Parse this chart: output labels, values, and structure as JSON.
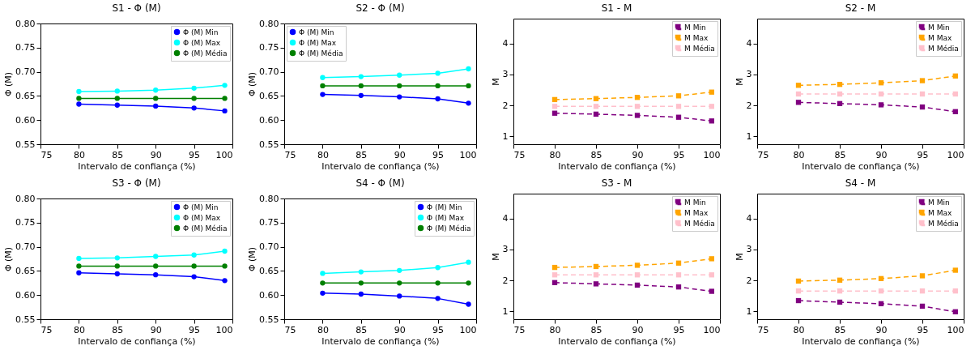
{
  "chart_data": [
    {
      "type": "line",
      "title": "S1 - Φ (M)",
      "xlabel": "Intervalo de confiança (%)",
      "ylabel": "Φ (M)",
      "x": [
        80,
        85,
        90,
        95,
        99
      ],
      "xlim": [
        75,
        100
      ],
      "xticks": [
        75,
        80,
        85,
        90,
        95,
        100
      ],
      "ylim": [
        0.55,
        0.8
      ],
      "yticks": [
        {
          "value": 0.55,
          "label": "0.55"
        },
        {
          "value": 0.6,
          "label": "0.60"
        },
        {
          "value": 0.65,
          "label": "0.65"
        },
        {
          "value": 0.7,
          "label": "0.70"
        },
        {
          "value": 0.75,
          "label": "0.75"
        },
        {
          "value": 0.8,
          "label": "0.80"
        }
      ],
      "marker": "circle",
      "line_style": "solid",
      "legend": "top right",
      "series": [
        {
          "name": "Φ (M) Min",
          "color": "#0000ff",
          "values": [
            0.633,
            0.631,
            0.629,
            0.625,
            0.619
          ]
        },
        {
          "name": "Φ (M) Max",
          "color": "#00ffff",
          "values": [
            0.659,
            0.66,
            0.662,
            0.666,
            0.672
          ]
        },
        {
          "name": "Φ (M) Média",
          "color": "#008000",
          "values": [
            0.645,
            0.645,
            0.645,
            0.645,
            0.645
          ]
        }
      ]
    },
    {
      "type": "line",
      "title": "S2 - Φ (M)",
      "xlabel": "Intervalo de confiança (%)",
      "ylabel": "Φ (M)",
      "x": [
        80,
        85,
        90,
        95,
        99
      ],
      "xlim": [
        75,
        100
      ],
      "xticks": [
        75,
        80,
        85,
        90,
        95,
        100
      ],
      "ylim": [
        0.55,
        0.8
      ],
      "yticks": [
        {
          "value": 0.55,
          "label": "0.55"
        },
        {
          "value": 0.6,
          "label": "0.60"
        },
        {
          "value": 0.65,
          "label": "0.65"
        },
        {
          "value": 0.7,
          "label": "0.70"
        },
        {
          "value": 0.75,
          "label": "0.75"
        },
        {
          "value": 0.8,
          "label": "0.80"
        }
      ],
      "marker": "circle",
      "line_style": "solid",
      "legend": "top left",
      "series": [
        {
          "name": "Φ (M) Min",
          "color": "#0000ff",
          "values": [
            0.653,
            0.651,
            0.648,
            0.644,
            0.635
          ]
        },
        {
          "name": "Φ (M) Max",
          "color": "#00ffff",
          "values": [
            0.688,
            0.69,
            0.693,
            0.697,
            0.706
          ]
        },
        {
          "name": "Φ (M) Média",
          "color": "#008000",
          "values": [
            0.671,
            0.671,
            0.671,
            0.671,
            0.671
          ]
        }
      ]
    },
    {
      "type": "line",
      "title": "S1 - M",
      "xlabel": "Intervalo de confiança (%)",
      "ylabel": "M",
      "x": [
        80,
        85,
        90,
        95,
        99
      ],
      "xlim": [
        75,
        100
      ],
      "xticks": [
        75,
        80,
        85,
        90,
        95,
        100
      ],
      "ylim": [
        0.75,
        4.8
      ],
      "yticks": [
        1,
        2,
        3,
        4
      ],
      "marker": "square",
      "line_style": "dashed",
      "legend": "top right",
      "series": [
        {
          "name": "M Min",
          "color": "#800080",
          "values": [
            1.75,
            1.72,
            1.68,
            1.62,
            1.5
          ]
        },
        {
          "name": "M Max",
          "color": "#ffa500",
          "values": [
            2.19,
            2.22,
            2.26,
            2.31,
            2.43
          ]
        },
        {
          "name": "M Média",
          "color": "#ffc0cb",
          "values": [
            1.97,
            1.97,
            1.97,
            1.97,
            1.97
          ]
        }
      ]
    },
    {
      "type": "line",
      "title": "S2 - M",
      "xlabel": "Intervalo de confiança (%)",
      "ylabel": "M",
      "x": [
        80,
        85,
        90,
        95,
        99
      ],
      "xlim": [
        75,
        100
      ],
      "xticks": [
        75,
        80,
        85,
        90,
        95,
        100
      ],
      "ylim": [
        0.75,
        4.8
      ],
      "yticks": [
        1,
        2,
        3,
        4
      ],
      "marker": "square",
      "line_style": "dashed",
      "legend": "top right",
      "series": [
        {
          "name": "M Min",
          "color": "#800080",
          "values": [
            2.1,
            2.06,
            2.02,
            1.95,
            1.8
          ]
        },
        {
          "name": "M Max",
          "color": "#ffa500",
          "values": [
            2.65,
            2.68,
            2.73,
            2.8,
            2.95
          ]
        },
        {
          "name": "M Média",
          "color": "#ffc0cb",
          "values": [
            2.37,
            2.37,
            2.37,
            2.37,
            2.37
          ]
        }
      ]
    },
    {
      "type": "line",
      "title": "S3 - Φ (M)",
      "xlabel": "Intervalo de confiança (%)",
      "ylabel": "Φ (M)",
      "x": [
        80,
        85,
        90,
        95,
        99
      ],
      "xlim": [
        75,
        100
      ],
      "xticks": [
        75,
        80,
        85,
        90,
        95,
        100
      ],
      "ylim": [
        0.55,
        0.8
      ],
      "yticks": [
        {
          "value": 0.55,
          "label": "0.55"
        },
        {
          "value": 0.6,
          "label": "0.60"
        },
        {
          "value": 0.65,
          "label": "0.65"
        },
        {
          "value": 0.7,
          "label": "0.70"
        },
        {
          "value": 0.75,
          "label": "0.75"
        },
        {
          "value": 0.8,
          "label": "0.80"
        }
      ],
      "marker": "circle",
      "line_style": "solid",
      "legend": "top right",
      "series": [
        {
          "name": "Φ (M) Min",
          "color": "#0000ff",
          "values": [
            0.646,
            0.644,
            0.642,
            0.638,
            0.63
          ]
        },
        {
          "name": "Φ (M) Max",
          "color": "#00ffff",
          "values": [
            0.676,
            0.677,
            0.68,
            0.683,
            0.691
          ]
        },
        {
          "name": "Φ (M) Média",
          "color": "#008000",
          "values": [
            0.66,
            0.66,
            0.66,
            0.66,
            0.66
          ]
        }
      ]
    },
    {
      "type": "line",
      "title": "S4 - Φ (M)",
      "xlabel": "Intervalo de confiança (%)",
      "ylabel": "Φ (M)",
      "x": [
        80,
        85,
        90,
        95,
        99
      ],
      "xlim": [
        75,
        100
      ],
      "xticks": [
        75,
        80,
        85,
        90,
        95,
        100
      ],
      "ylim": [
        0.55,
        0.8
      ],
      "yticks": [
        {
          "value": 0.55,
          "label": "0.55"
        },
        {
          "value": 0.6,
          "label": "0.60"
        },
        {
          "value": 0.65,
          "label": "0.65"
        },
        {
          "value": 0.7,
          "label": "0.70"
        },
        {
          "value": 0.75,
          "label": "0.75"
        },
        {
          "value": 0.8,
          "label": "0.80"
        }
      ],
      "marker": "circle",
      "line_style": "solid",
      "legend": "top right",
      "series": [
        {
          "name": "Φ (M) Min",
          "color": "#0000ff",
          "values": [
            0.604,
            0.602,
            0.598,
            0.593,
            0.581
          ]
        },
        {
          "name": "Φ (M) Max",
          "color": "#00ffff",
          "values": [
            0.645,
            0.648,
            0.651,
            0.657,
            0.668
          ]
        },
        {
          "name": "Φ (M) Média",
          "color": "#008000",
          "values": [
            0.625,
            0.625,
            0.625,
            0.625,
            0.625
          ]
        }
      ]
    },
    {
      "type": "line",
      "title": "S3 - M",
      "xlabel": "Intervalo de confiança (%)",
      "ylabel": "M",
      "x": [
        80,
        85,
        90,
        95,
        99
      ],
      "xlim": [
        75,
        100
      ],
      "xticks": [
        75,
        80,
        85,
        90,
        95,
        100
      ],
      "ylim": [
        0.75,
        4.8
      ],
      "yticks": [
        1,
        2,
        3,
        4
      ],
      "marker": "square",
      "line_style": "dashed",
      "legend": "top right",
      "series": [
        {
          "name": "M Min",
          "color": "#800080",
          "values": [
            1.93,
            1.89,
            1.85,
            1.79,
            1.65
          ]
        },
        {
          "name": "M Max",
          "color": "#ffa500",
          "values": [
            2.42,
            2.45,
            2.49,
            2.56,
            2.7
          ]
        },
        {
          "name": "M Média",
          "color": "#ffc0cb",
          "values": [
            2.18,
            2.18,
            2.18,
            2.18,
            2.18
          ]
        }
      ]
    },
    {
      "type": "line",
      "title": "S4 - M",
      "xlabel": "Intervalo de confiança (%)",
      "ylabel": "M",
      "x": [
        80,
        85,
        90,
        95,
        99
      ],
      "xlim": [
        75,
        100
      ],
      "xticks": [
        75,
        80,
        85,
        90,
        95,
        100
      ],
      "ylim": [
        0.75,
        4.8
      ],
      "yticks": [
        1,
        2,
        3,
        4
      ],
      "marker": "square",
      "line_style": "dashed",
      "legend": "top right",
      "series": [
        {
          "name": "M Min",
          "color": "#800080",
          "values": [
            1.35,
            1.3,
            1.25,
            1.17,
            0.99
          ]
        },
        {
          "name": "M Max",
          "color": "#ffa500",
          "values": [
            1.98,
            2.01,
            2.06,
            2.15,
            2.33
          ]
        },
        {
          "name": "M Média",
          "color": "#ffc0cb",
          "values": [
            1.66,
            1.66,
            1.66,
            1.66,
            1.66
          ]
        }
      ]
    }
  ]
}
